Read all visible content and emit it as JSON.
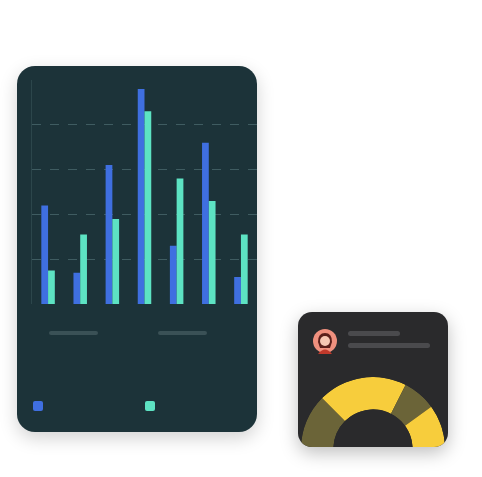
{
  "chart_data": [
    {
      "type": "bar",
      "categories": [
        null,
        null,
        null,
        null,
        null,
        null,
        null
      ],
      "series": [
        {
          "color": "#3f6fe0",
          "values": [
            2.2,
            0.7,
            3.1,
            4.8,
            1.3,
            3.6,
            0.6
          ]
        },
        {
          "color": "#5de3c3",
          "values": [
            0.75,
            1.55,
            1.9,
            4.3,
            2.8,
            2.3,
            1.55
          ]
        }
      ],
      "ylim": [
        0,
        5
      ],
      "yticks": [
        1,
        2,
        3,
        4
      ],
      "grid": true,
      "tick_labels": false
    },
    {
      "type": "donut",
      "values": [
        25,
        40,
        15,
        20
      ],
      "colors": [
        "#6b6438",
        "#f7cd3c",
        "#6b6438",
        "#f7cd3c"
      ]
    }
  ]
}
